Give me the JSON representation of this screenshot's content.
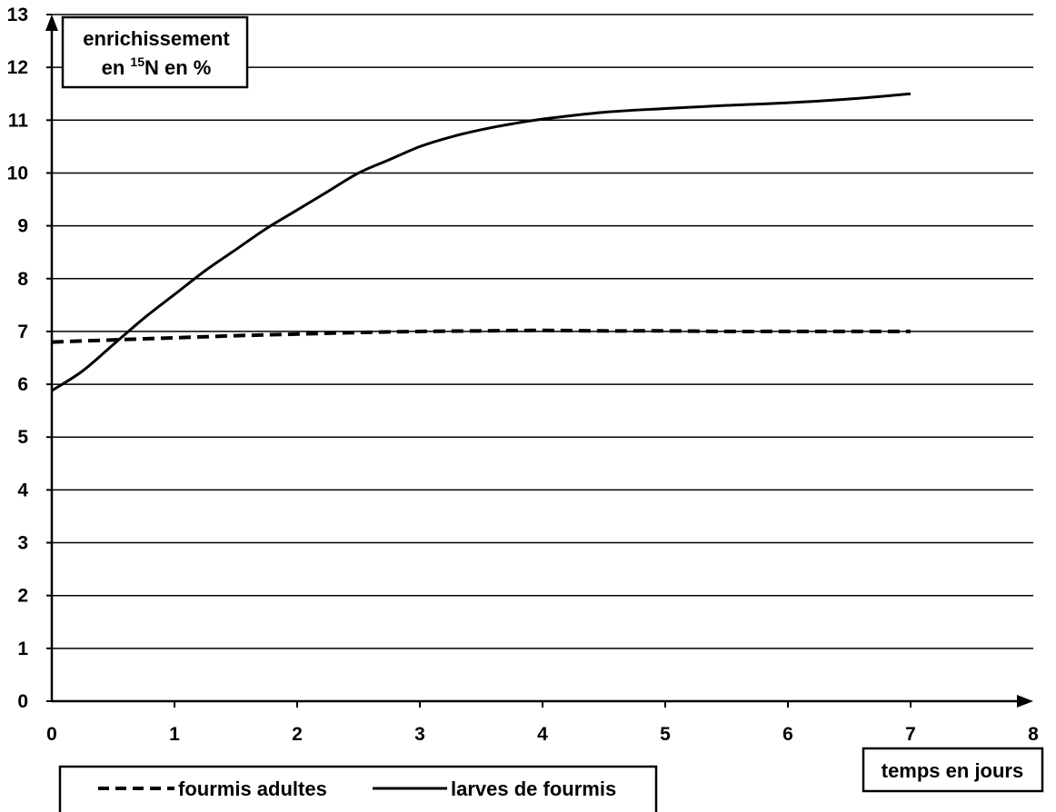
{
  "chart_data": {
    "type": "line",
    "ylabel_line1": "enrichissement",
    "ylabel_prefix": "en ",
    "ylabel_superscript": "15",
    "ylabel_suffix": "N en %",
    "xlabel": "temps en jours",
    "xlim": [
      0,
      8
    ],
    "ylim": [
      0,
      13
    ],
    "x_ticks": [
      0,
      1,
      2,
      3,
      4,
      5,
      6,
      7,
      8
    ],
    "y_ticks": [
      0,
      1,
      2,
      3,
      4,
      5,
      6,
      7,
      8,
      9,
      10,
      11,
      12,
      13
    ],
    "grid": "horizontal",
    "legend_position": "bottom",
    "series": [
      {
        "name": "fourmis adultes",
        "style": "dashed",
        "color": "#000000",
        "x": [
          0,
          0.5,
          1,
          1.5,
          2,
          2.5,
          3,
          3.5,
          4,
          4.5,
          5,
          5.5,
          6,
          6.5,
          7
        ],
        "y": [
          6.8,
          6.84,
          6.88,
          6.92,
          6.95,
          6.98,
          7.0,
          7.01,
          7.02,
          7.01,
          7.01,
          7.0,
          7.0,
          7.0,
          7.0
        ]
      },
      {
        "name": "larves de fourmis",
        "style": "solid",
        "color": "#000000",
        "x": [
          0,
          0.25,
          0.5,
          0.75,
          1,
          1.25,
          1.5,
          1.75,
          2,
          2.25,
          2.5,
          2.75,
          3,
          3.25,
          3.5,
          3.75,
          4,
          4.5,
          5,
          5.5,
          6,
          6.5,
          7
        ],
        "y": [
          5.88,
          6.25,
          6.75,
          7.25,
          7.7,
          8.15,
          8.55,
          8.95,
          9.3,
          9.65,
          10.0,
          10.25,
          10.5,
          10.68,
          10.82,
          10.93,
          11.02,
          11.15,
          11.22,
          11.28,
          11.33,
          11.4,
          11.5
        ]
      }
    ]
  }
}
